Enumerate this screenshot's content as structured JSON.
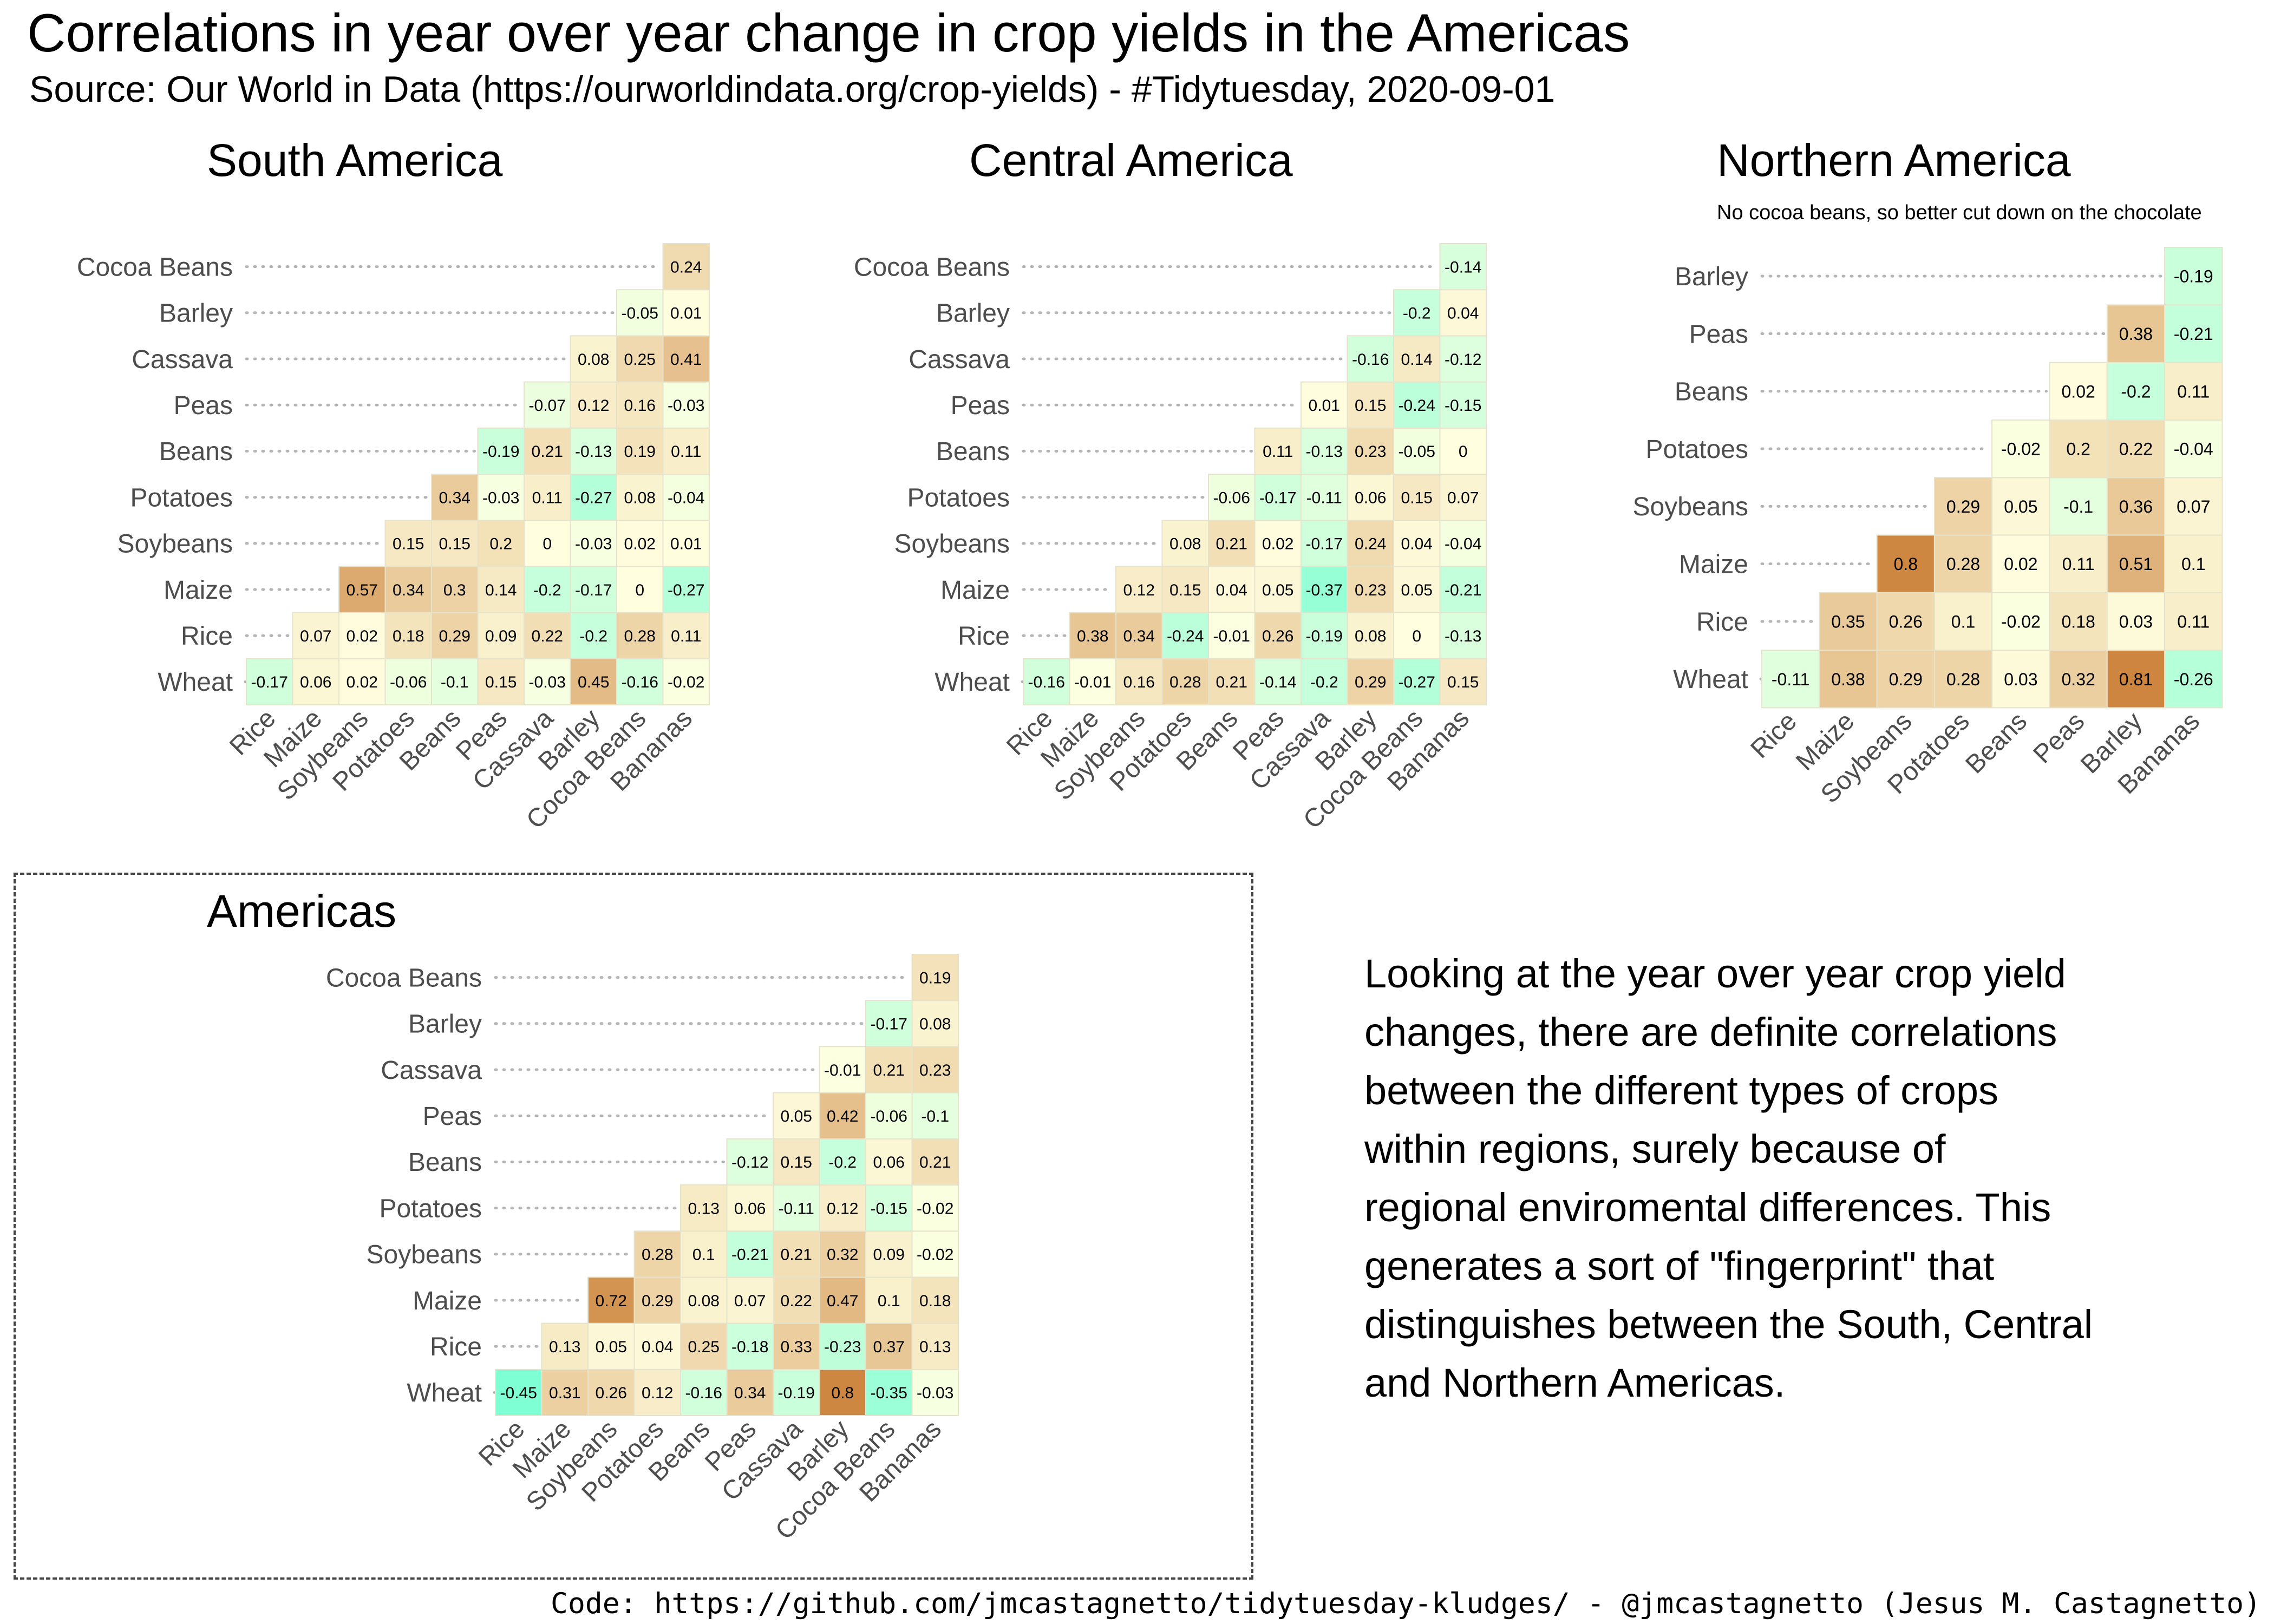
{
  "title": "Correlations in year over year change in crop yields in the Americas",
  "subtitle": "Source: Our World in Data (https://ourworldindata.org/crop-yields) - #Tidytuesday, 2020-09-01",
  "commentary_lines": [
    "Looking at the year over year crop yield",
    "changes, there are definite correlations",
    "between the different types of crops",
    "within regions, surely because of",
    "regional enviromental differences. This",
    "generates a sort of \"fingerprint\" that",
    "distinguishes between the South, Central",
    "and Northern Americas."
  ],
  "code_caption": "Code: https://github.com/jmcastagnetto/tidytuesday-kludges/ - @jmcastagnetto (Jesus M. Castagnetto)",
  "colors": {
    "negative_max": "#7fffd4",
    "neutral": "#ffffe0",
    "positive_max": "#cd853f",
    "tile_border": "#e6e3cc",
    "leader_dots": "#b5b5b5",
    "axis_text": "#4d4d4d"
  },
  "chart_data": [
    {
      "type": "heatmap",
      "title": "South America",
      "subtitle": "",
      "x_labels": [
        "Rice",
        "Maize",
        "Soybeans",
        "Potatoes",
        "Beans",
        "Peas",
        "Cassava",
        "Barley",
        "Cocoa Beans",
        "Bananas"
      ],
      "y_labels": [
        "Wheat",
        "Rice",
        "Maize",
        "Soybeans",
        "Potatoes",
        "Beans",
        "Peas",
        "Cassava",
        "Barley",
        "Cocoa Beans"
      ],
      "rows": [
        [
          -0.17,
          0.06,
          0.02,
          -0.06,
          -0.1,
          0.15,
          -0.03,
          0.45,
          -0.16,
          -0.02
        ],
        [
          0.07,
          0.02,
          0.18,
          0.29,
          0.09,
          0.22,
          -0.2,
          0.28,
          0.11
        ],
        [
          0.57,
          0.34,
          0.3,
          0.14,
          -0.2,
          -0.17,
          0,
          -0.27
        ],
        [
          0.15,
          0.15,
          0.2,
          0,
          -0.03,
          0.02,
          0.01
        ],
        [
          0.34,
          -0.03,
          0.11,
          -0.27,
          0.08,
          -0.04
        ],
        [
          -0.19,
          0.21,
          -0.13,
          0.19,
          0.11
        ],
        [
          -0.07,
          0.12,
          0.16,
          -0.03
        ],
        [
          0.08,
          0.25,
          0.41
        ],
        [
          -0.05,
          0.01
        ],
        [
          0.24
        ]
      ],
      "value_range": [
        -1,
        1
      ]
    },
    {
      "type": "heatmap",
      "title": "Central America",
      "subtitle": "",
      "x_labels": [
        "Rice",
        "Maize",
        "Soybeans",
        "Potatoes",
        "Beans",
        "Peas",
        "Cassava",
        "Barley",
        "Cocoa Beans",
        "Bananas"
      ],
      "y_labels": [
        "Wheat",
        "Rice",
        "Maize",
        "Soybeans",
        "Potatoes",
        "Beans",
        "Peas",
        "Cassava",
        "Barley",
        "Cocoa Beans"
      ],
      "rows": [
        [
          -0.16,
          -0.01,
          0.16,
          0.28,
          0.21,
          -0.14,
          -0.2,
          0.29,
          -0.27,
          0.15
        ],
        [
          0.38,
          0.34,
          -0.24,
          -0.01,
          0.26,
          -0.19,
          0.08,
          0,
          -0.13
        ],
        [
          0.12,
          0.15,
          0.04,
          0.05,
          -0.37,
          0.23,
          0.05,
          -0.21
        ],
        [
          0.08,
          0.21,
          0.02,
          -0.17,
          0.24,
          0.04,
          -0.04
        ],
        [
          -0.06,
          -0.17,
          -0.11,
          0.06,
          0.15,
          0.07
        ],
        [
          0.11,
          -0.13,
          0.23,
          -0.05,
          0
        ],
        [
          0.01,
          0.15,
          -0.24,
          -0.15
        ],
        [
          -0.16,
          0.14,
          -0.12
        ],
        [
          -0.2,
          0.04
        ],
        [
          -0.14
        ]
      ],
      "value_range": [
        -1,
        1
      ]
    },
    {
      "type": "heatmap",
      "title": "Northern America",
      "subtitle": "No cocoa beans, so better cut down on the chocolate",
      "x_labels": [
        "Rice",
        "Maize",
        "Soybeans",
        "Potatoes",
        "Beans",
        "Peas",
        "Barley",
        "Bananas"
      ],
      "y_labels": [
        "Wheat",
        "Rice",
        "Maize",
        "Soybeans",
        "Potatoes",
        "Beans",
        "Peas",
        "Barley"
      ],
      "rows": [
        [
          -0.11,
          0.38,
          0.29,
          0.28,
          0.03,
          0.32,
          0.81,
          -0.26
        ],
        [
          0.35,
          0.26,
          0.1,
          -0.02,
          0.18,
          0.03,
          0.11
        ],
        [
          0.8,
          0.28,
          0.02,
          0.11,
          0.51,
          0.1
        ],
        [
          0.29,
          0.05,
          -0.1,
          0.36,
          0.07
        ],
        [
          -0.02,
          0.2,
          0.22,
          -0.04
        ],
        [
          0.02,
          -0.2,
          0.11
        ],
        [
          0.38,
          -0.21
        ],
        [
          -0.19
        ]
      ],
      "value_range": [
        -1,
        1
      ]
    },
    {
      "type": "heatmap",
      "title": "Americas",
      "subtitle": "",
      "x_labels": [
        "Rice",
        "Maize",
        "Soybeans",
        "Potatoes",
        "Beans",
        "Peas",
        "Cassava",
        "Barley",
        "Cocoa Beans",
        "Bananas"
      ],
      "y_labels": [
        "Wheat",
        "Rice",
        "Maize",
        "Soybeans",
        "Potatoes",
        "Beans",
        "Peas",
        "Cassava",
        "Barley",
        "Cocoa Beans"
      ],
      "rows": [
        [
          -0.45,
          0.31,
          0.26,
          0.12,
          -0.16,
          0.34,
          -0.19,
          0.8,
          -0.35,
          -0.03
        ],
        [
          0.13,
          0.05,
          0.04,
          0.25,
          -0.18,
          0.33,
          -0.23,
          0.37,
          0.13
        ],
        [
          0.72,
          0.29,
          0.08,
          0.07,
          0.22,
          0.47,
          0.1,
          0.18
        ],
        [
          0.28,
          0.1,
          -0.21,
          0.21,
          0.32,
          0.09,
          -0.02
        ],
        [
          0.13,
          0.06,
          -0.11,
          0.12,
          -0.15,
          -0.02
        ],
        [
          -0.12,
          0.15,
          -0.2,
          0.06,
          0.21
        ],
        [
          0.05,
          0.42,
          -0.06,
          -0.1
        ],
        [
          -0.01,
          0.21,
          0.23
        ],
        [
          -0.17,
          0.08
        ],
        [
          0.19
        ]
      ],
      "value_range": [
        -1,
        1
      ]
    }
  ]
}
